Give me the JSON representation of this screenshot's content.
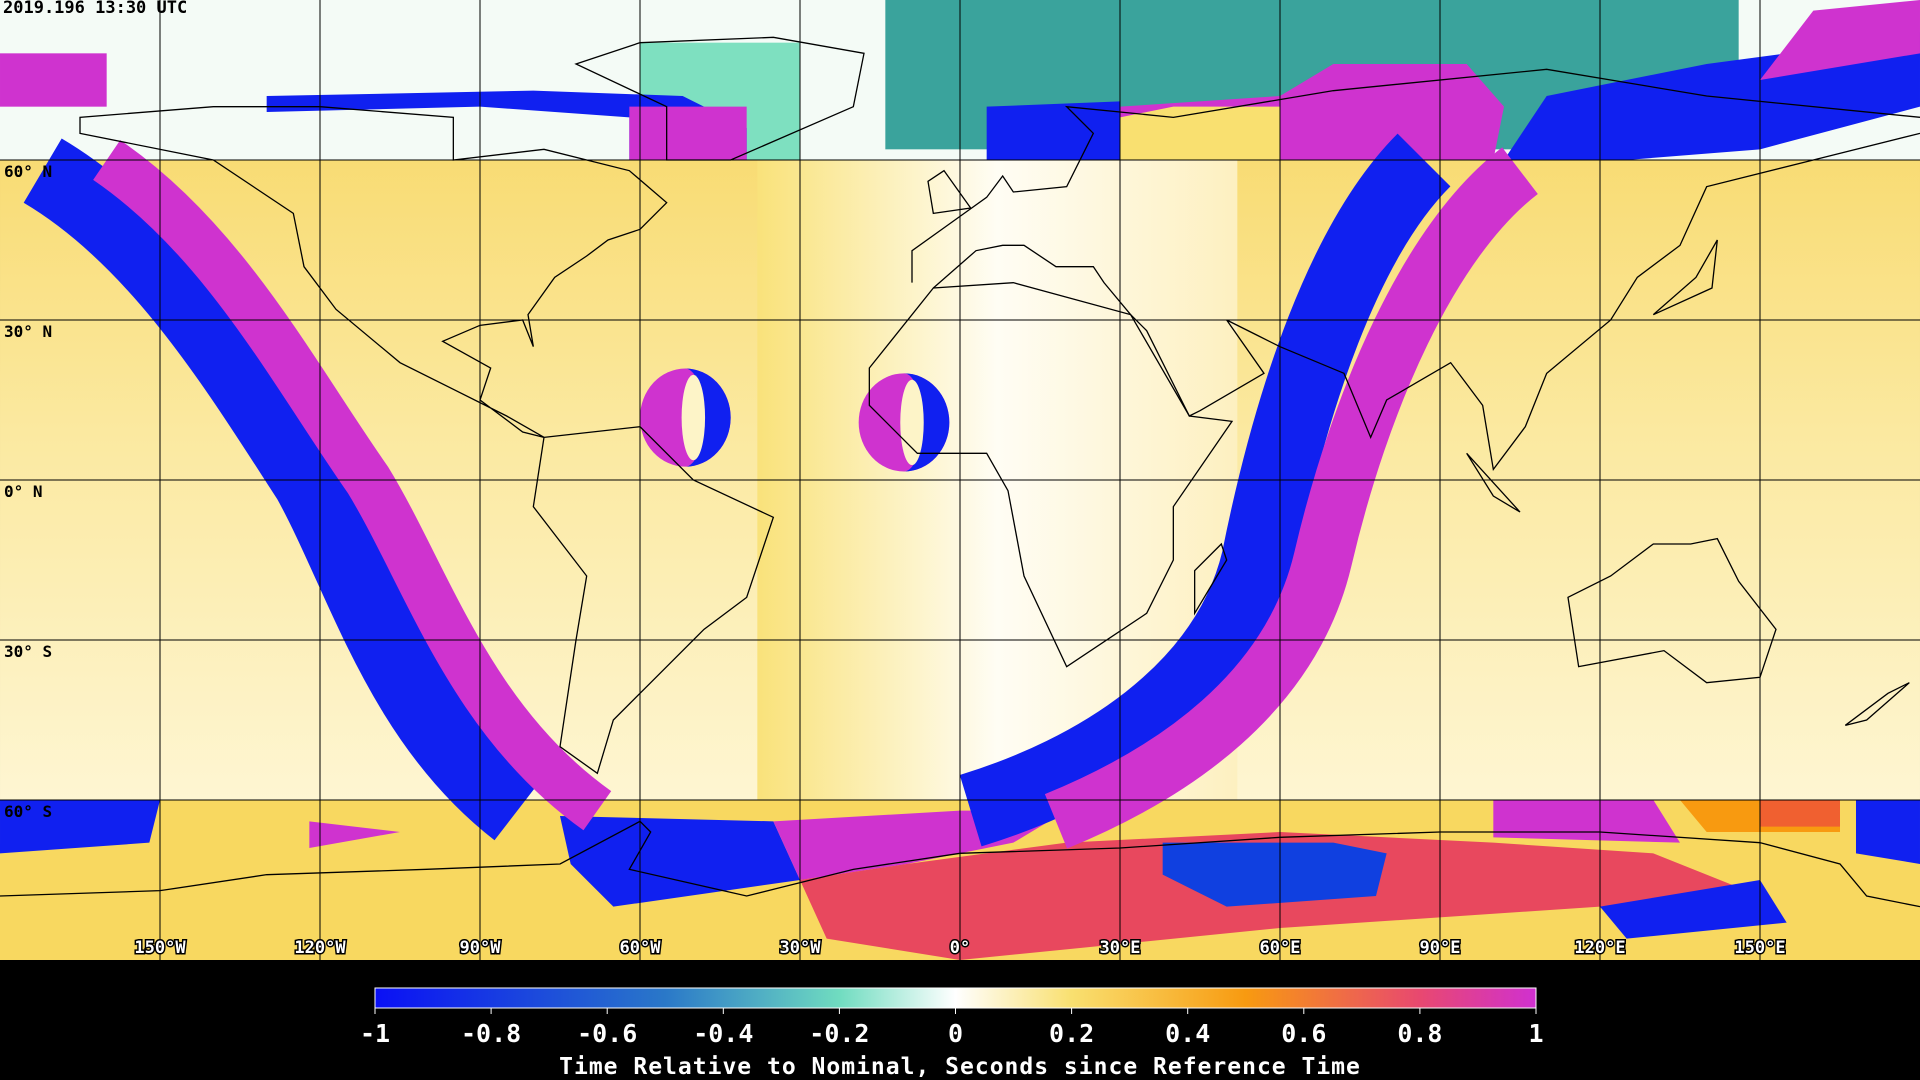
{
  "timestamp": "2019.196 13:30 UTC",
  "latitude_lines": [
    {
      "value": 60,
      "label": "60° N"
    },
    {
      "value": 30,
      "label": "30° N"
    },
    {
      "value": 0,
      "label": "0° N"
    },
    {
      "value": -30,
      "label": "30° S"
    },
    {
      "value": -60,
      "label": "60° S"
    }
  ],
  "longitude_lines": [
    {
      "value": -150,
      "label": "150°W"
    },
    {
      "value": -120,
      "label": "120°W"
    },
    {
      "value": -90,
      "label": "90°W"
    },
    {
      "value": -60,
      "label": "60°W"
    },
    {
      "value": -30,
      "label": "30°W"
    },
    {
      "value": 0,
      "label": "0°"
    },
    {
      "value": 30,
      "label": "30°E"
    },
    {
      "value": 60,
      "label": "60°E"
    },
    {
      "value": 90,
      "label": "90°E"
    },
    {
      "value": 120,
      "label": "120°E"
    },
    {
      "value": 150,
      "label": "150°E"
    }
  ],
  "colorbar": {
    "label": "Time Relative to Nominal, Seconds since Reference Time",
    "range": [
      -1,
      1
    ],
    "ticks": [
      -1,
      -0.8,
      -0.6,
      -0.4,
      -0.2,
      0,
      0.2,
      0.4,
      0.6,
      0.8,
      1
    ]
  }
}
